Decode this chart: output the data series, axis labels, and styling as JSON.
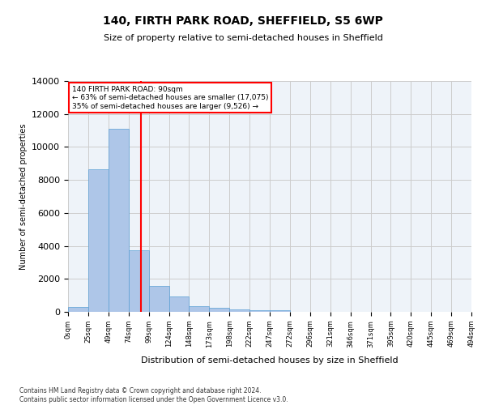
{
  "title1": "140, FIRTH PARK ROAD, SHEFFIELD, S5 6WP",
  "title2": "Size of property relative to semi-detached houses in Sheffield",
  "xlabel": "Distribution of semi-detached houses by size in Sheffield",
  "ylabel": "Number of semi-detached properties",
  "bin_labels": [
    "0sqm",
    "25sqm",
    "49sqm",
    "74sqm",
    "99sqm",
    "124sqm",
    "148sqm",
    "173sqm",
    "198sqm",
    "222sqm",
    "247sqm",
    "272sqm",
    "296sqm",
    "321sqm",
    "346sqm",
    "371sqm",
    "395sqm",
    "420sqm",
    "445sqm",
    "469sqm",
    "494sqm"
  ],
  "bar_heights": [
    300,
    8650,
    11100,
    3750,
    1550,
    950,
    350,
    230,
    150,
    100,
    100,
    0,
    0,
    0,
    0,
    0,
    0,
    0,
    0,
    0
  ],
  "bar_color": "#aec6e8",
  "bar_edge_color": "#5a9fd4",
  "annotation_line1": "140 FIRTH PARK ROAD: 90sqm",
  "annotation_line2": "← 63% of semi-detached houses are smaller (17,075)",
  "annotation_line3": "35% of semi-detached houses are larger (9,526) →",
  "vline_color": "red",
  "ylim": [
    0,
    14000
  ],
  "yticks": [
    0,
    2000,
    4000,
    6000,
    8000,
    10000,
    12000,
    14000
  ],
  "grid_color": "#cccccc",
  "background_color": "#eef3f9",
  "footer1": "Contains HM Land Registry data © Crown copyright and database right 2024.",
  "footer2": "Contains public sector information licensed under the Open Government Licence v3.0."
}
